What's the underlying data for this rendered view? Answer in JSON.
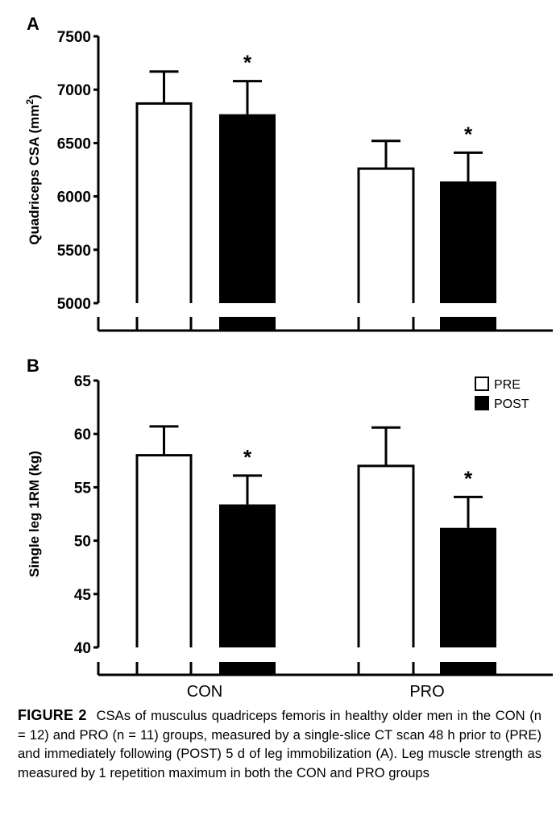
{
  "chart_data": [
    {
      "panel": "A",
      "type": "bar",
      "categories": [
        "CON",
        "PRO"
      ],
      "ylabel": "Quadriceps CSA (mm",
      "ylabel_sup": "2",
      "ylabel_close": ")",
      "ylim": [
        5000,
        7500
      ],
      "yticks": [
        5000,
        5500,
        6000,
        6500,
        7000,
        7500
      ],
      "axis_break": true,
      "series": [
        {
          "name": "PRE",
          "color": "#ffffff",
          "values": [
            6870,
            6260
          ],
          "errors": [
            300,
            260
          ],
          "significant": [
            false,
            false
          ]
        },
        {
          "name": "POST",
          "color": "#000000",
          "values": [
            6770,
            6140
          ],
          "errors": [
            310,
            270
          ],
          "significant": [
            true,
            true
          ]
        }
      ],
      "annotations": [
        "*",
        "*"
      ]
    },
    {
      "panel": "B",
      "type": "bar",
      "categories": [
        "CON",
        "PRO"
      ],
      "ylabel": "Single leg 1RM (kg)",
      "ylim": [
        40,
        65
      ],
      "yticks": [
        40,
        45,
        50,
        55,
        60,
        65
      ],
      "axis_break": true,
      "legend": {
        "position": "top-right",
        "entries": [
          "PRE",
          "POST"
        ]
      },
      "series": [
        {
          "name": "PRE",
          "color": "#ffffff",
          "values": [
            58.0,
            57.0
          ],
          "errors": [
            2.7,
            3.6
          ],
          "significant": [
            false,
            false
          ]
        },
        {
          "name": "POST",
          "color": "#000000",
          "values": [
            53.4,
            51.2
          ],
          "errors": [
            2.7,
            2.9
          ],
          "significant": [
            true,
            true
          ]
        }
      ],
      "annotations": [
        "*",
        "*"
      ]
    }
  ],
  "caption": {
    "label": "FIGURE 2",
    "text": "CSAs of musculus quadriceps femoris in healthy older men in the CON (n = 12) and PRO (n = 11) groups, measured by a single-slice CT scan 48 h prior to (PRE) and immediately following (POST) 5 d of leg immobilization (A). Leg muscle strength as measured by 1 repetition maximum in both the CON and PRO groups"
  }
}
